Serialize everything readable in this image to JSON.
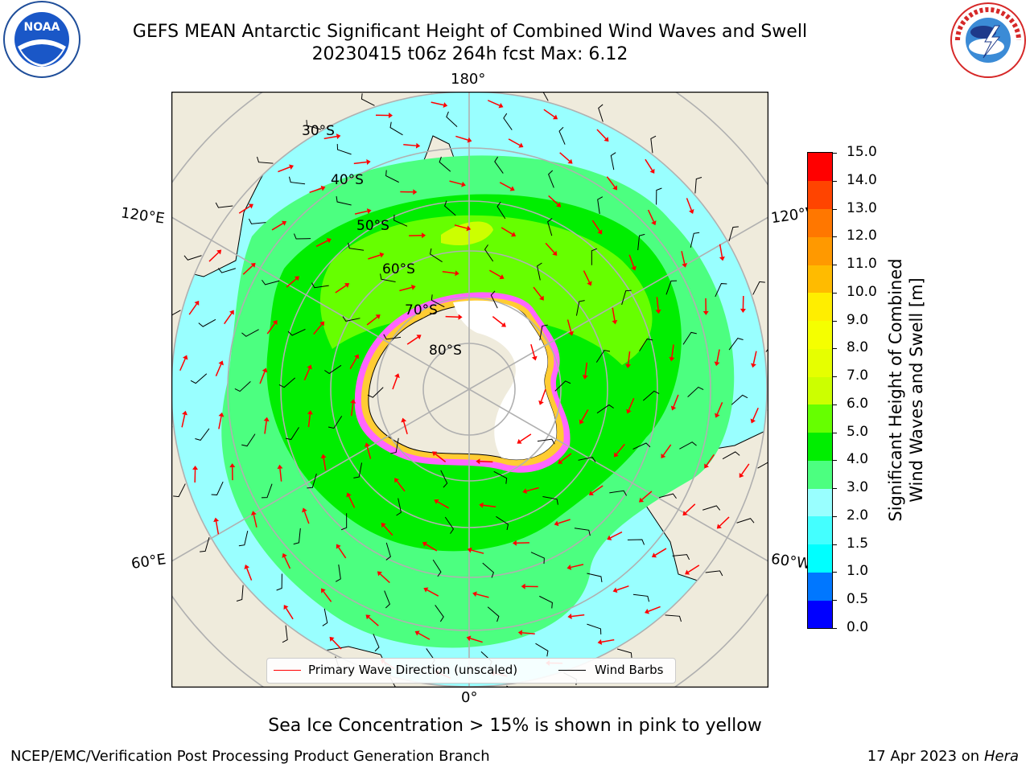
{
  "header": {
    "title_line1": "GEFS MEAN Antarctic Significant Height of Combined Wind Waves and Swell",
    "title_line2": "20230415 t06z 264h fcst   Max: 6.12",
    "left_logo_text": "NOAA",
    "right_logo_text": "NATIONAL WEATHER SERVICE"
  },
  "map": {
    "projection": "south-polar-stereographic",
    "longitude_labels": [
      "180°",
      "120°E",
      "120°W",
      "60°E",
      "60°W",
      "0°"
    ],
    "latitude_labels": [
      "30°S",
      "40°S",
      "50°S",
      "60°S",
      "70°S",
      "80°S"
    ],
    "colors": {
      "land": "#efebdc",
      "ocean_low": "#99ffff",
      "wave_3_4m": "#4cff80",
      "wave_4_5m": "#00ee00",
      "wave_5_6m": "#66ff00",
      "wave_6_7m": "#ccff00",
      "sea_ice_edge": "#ff33ff",
      "ice_yellow": "#ffcc33",
      "wave_arrow": "#ff0000",
      "wind_barb": "#000000",
      "graticule": "#b0b0b0"
    }
  },
  "legend": {
    "wave_direction_label": "Primary Wave Direction (unscaled)",
    "wind_barbs_label": "Wind Barbs"
  },
  "colorbar": {
    "label_line1": "Significant Height of Combined",
    "label_line2": "Wind Waves and Swell [m]",
    "ticks": [
      "15.0",
      "14.0",
      "13.0",
      "12.0",
      "11.0",
      "10.0",
      "9.0",
      "8.0",
      "7.0",
      "6.0",
      "5.0",
      "4.0",
      "3.0",
      "2.0",
      "1.5",
      "1.0",
      "0.5",
      "0.0"
    ],
    "bins": [
      {
        "from": 0.0,
        "to": 0.5,
        "color": "#0000ff"
      },
      {
        "from": 0.5,
        "to": 1.0,
        "color": "#0077ff"
      },
      {
        "from": 1.0,
        "to": 1.5,
        "color": "#00ffff"
      },
      {
        "from": 1.5,
        "to": 2.0,
        "color": "#44ffff"
      },
      {
        "from": 2.0,
        "to": 3.0,
        "color": "#99ffff"
      },
      {
        "from": 3.0,
        "to": 4.0,
        "color": "#4cff80"
      },
      {
        "from": 4.0,
        "to": 5.0,
        "color": "#00ee00"
      },
      {
        "from": 5.0,
        "to": 6.0,
        "color": "#66ff00"
      },
      {
        "from": 6.0,
        "to": 7.0,
        "color": "#ccff00"
      },
      {
        "from": 7.0,
        "to": 8.0,
        "color": "#e6ff00"
      },
      {
        "from": 8.0,
        "to": 9.0,
        "color": "#f5ff00"
      },
      {
        "from": 9.0,
        "to": 10.0,
        "color": "#ffee00"
      },
      {
        "from": 10.0,
        "to": 11.0,
        "color": "#ffbb00"
      },
      {
        "from": 11.0,
        "to": 12.0,
        "color": "#ff9900"
      },
      {
        "from": 12.0,
        "to": 13.0,
        "color": "#ff7700"
      },
      {
        "from": 13.0,
        "to": 14.0,
        "color": "#ff4400"
      },
      {
        "from": 14.0,
        "to": 15.0,
        "color": "#ff0000"
      }
    ]
  },
  "caption": "Sea Ice Concentration > 15% is shown in pink to yellow",
  "footer": {
    "left": "NCEP/EMC/Verification Post Processing Product Generation Branch",
    "right_prefix": "17 Apr 2023 on ",
    "right_host": "Hera"
  }
}
